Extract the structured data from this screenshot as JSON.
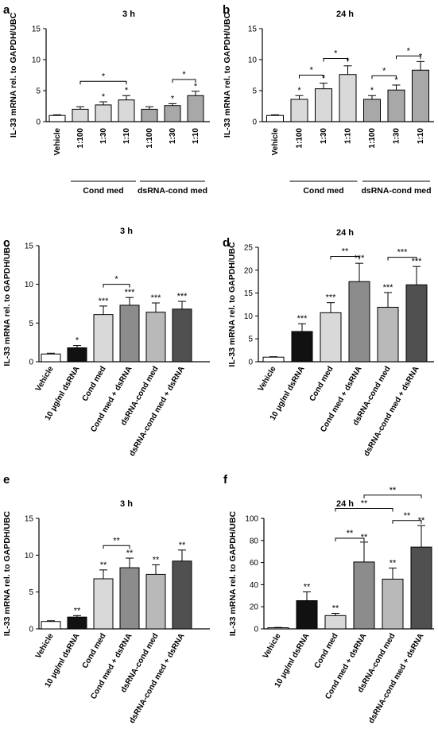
{
  "figure": {
    "y_axis_label": "IL-33 mRNA rel. to GAPDH/UBC",
    "group_labels": {
      "cond": "Cond med",
      "dsrna": "dsRNA-cond med"
    }
  },
  "chart_data": [
    {
      "panel": "a",
      "type": "bar",
      "title": "3 h",
      "ylabel": "IL-33 mRNA rel. to GAPDH/UBC",
      "ylim": [
        0,
        15
      ],
      "yticks": [
        0,
        5,
        10,
        15
      ],
      "categories": [
        "Vehicle",
        "1:100",
        "1:30",
        "1:10",
        "1:100",
        "1:30",
        "1:10"
      ],
      "values": [
        1.0,
        2.0,
        2.7,
        3.5,
        2.0,
        2.6,
        4.2
      ],
      "errors": [
        0.1,
        0.4,
        0.5,
        0.7,
        0.4,
        0.3,
        0.7
      ],
      "fills": [
        "#ffffff",
        "#d9d9d9",
        "#d9d9d9",
        "#d9d9d9",
        "#a8a8a8",
        "#a8a8a8",
        "#a8a8a8"
      ],
      "stars": [
        "",
        "",
        "*",
        "*",
        "",
        "*",
        "*"
      ],
      "brackets": [
        {
          "from": 1,
          "to": 3,
          "y": 6.5,
          "label": "*"
        },
        {
          "from": 5,
          "to": 6,
          "y": 6.8,
          "label": "*"
        }
      ],
      "groups": [
        {
          "from": 1,
          "to": 3,
          "label": "Cond med"
        },
        {
          "from": 4,
          "to": 6,
          "label": "dsRNA-cond med"
        }
      ]
    },
    {
      "panel": "b",
      "type": "bar",
      "title": "24 h",
      "ylabel": "IL-33 mRNA rel. to GAPDH/UBC",
      "ylim": [
        0,
        15
      ],
      "yticks": [
        0,
        5,
        10,
        15
      ],
      "categories": [
        "Vehicle",
        "1:100",
        "1:30",
        "1:10",
        "1:100",
        "1:30",
        "1:10"
      ],
      "values": [
        1.0,
        3.6,
        5.3,
        7.6,
        3.6,
        5.1,
        8.3
      ],
      "errors": [
        0.1,
        0.6,
        0.9,
        1.4,
        0.6,
        0.8,
        1.4
      ],
      "fills": [
        "#ffffff",
        "#d9d9d9",
        "#d9d9d9",
        "#d9d9d9",
        "#a8a8a8",
        "#a8a8a8",
        "#a8a8a8"
      ],
      "stars": [
        "",
        "*",
        "*",
        "*",
        "*",
        "*",
        "*"
      ],
      "brackets": [
        {
          "from": 1,
          "to": 2,
          "y": 7.5,
          "label": "*"
        },
        {
          "from": 2,
          "to": 3,
          "y": 10.2,
          "label": "*"
        },
        {
          "from": 4,
          "to": 5,
          "y": 7.4,
          "label": "*"
        },
        {
          "from": 5,
          "to": 6,
          "y": 10.6,
          "label": "*"
        }
      ],
      "groups": [
        {
          "from": 1,
          "to": 3,
          "label": "Cond med"
        },
        {
          "from": 4,
          "to": 6,
          "label": "dsRNA-cond med"
        }
      ]
    },
    {
      "panel": "c",
      "type": "bar",
      "title": "3 h",
      "ylabel": "IL-33 mRNA rel. to GAPDH/UBC",
      "ylim": [
        0,
        15
      ],
      "yticks": [
        0,
        5,
        10,
        15
      ],
      "categories": [
        "Vehicle",
        "10 μg/ml dsRNA",
        "Cond med",
        "Cond med + dsRNA",
        "dsRNA-cond med",
        "dsRNA-cond med + dsRNA"
      ],
      "values": [
        1.0,
        1.8,
        6.1,
        7.3,
        6.4,
        6.8
      ],
      "errors": [
        0.1,
        0.3,
        1.1,
        1.0,
        1.2,
        1.0
      ],
      "fills": [
        "#ffffff",
        "#111111",
        "#d9d9d9",
        "#8c8c8c",
        "#b9b9b9",
        "#505050"
      ],
      "stars": [
        "",
        "*",
        "***",
        "***",
        "***",
        "***"
      ],
      "brackets": [
        {
          "from": 2,
          "to": 3,
          "y": 10.0,
          "label": "*"
        }
      ]
    },
    {
      "panel": "d",
      "type": "bar",
      "title": "24 h",
      "ylabel": "IL-33 mRNA rel. to GAPDH/UBC",
      "ylim": [
        0,
        25
      ],
      "yticks": [
        0,
        5,
        10,
        15,
        20,
        25
      ],
      "categories": [
        "Vehicle",
        "10 μg/ml dsRNA",
        "Cond med",
        "Cond med + dsRNA",
        "dsRNA-cond med",
        "dsRNA-cond med + dsRNA"
      ],
      "values": [
        1.0,
        6.6,
        10.7,
        17.5,
        11.9,
        16.8
      ],
      "errors": [
        0.1,
        1.7,
        2.2,
        4.0,
        3.2,
        4.0
      ],
      "fills": [
        "#ffffff",
        "#111111",
        "#d9d9d9",
        "#8c8c8c",
        "#b9b9b9",
        "#505050"
      ],
      "stars": [
        "",
        "***",
        "***",
        "***",
        "***",
        "***"
      ],
      "brackets": [
        {
          "from": 2,
          "to": 3,
          "y": 23.0,
          "label": "**"
        },
        {
          "from": 4,
          "to": 5,
          "y": 22.8,
          "label": "***"
        }
      ]
    },
    {
      "panel": "e",
      "type": "bar",
      "title": "3 h",
      "ylabel": "IL-33 mRNA rel. to GAPDH/UBC",
      "ylim": [
        0,
        15
      ],
      "yticks": [
        0,
        5,
        10,
        15
      ],
      "categories": [
        "Vehicle",
        "10 μg/ml dsRNA",
        "Cond med",
        "Cond med + dsRNA",
        "dsRNA-cond med",
        "dsRNA-cond med + dsRNA"
      ],
      "values": [
        1.0,
        1.6,
        6.8,
        8.3,
        7.4,
        9.2
      ],
      "errors": [
        0.1,
        0.2,
        1.2,
        1.3,
        1.3,
        1.5
      ],
      "fills": [
        "#ffffff",
        "#111111",
        "#d9d9d9",
        "#8c8c8c",
        "#b9b9b9",
        "#505050"
      ],
      "stars": [
        "",
        "**",
        "**",
        "**",
        "**",
        "**"
      ],
      "brackets": [
        {
          "from": 2,
          "to": 3,
          "y": 11.3,
          "label": "**"
        }
      ]
    },
    {
      "panel": "f",
      "type": "bar",
      "title": "24 h",
      "ylabel": "IL-33 mRNA rel. to GAPDH/UBC",
      "ylim": [
        0,
        100
      ],
      "yticks": [
        0,
        20,
        40,
        60,
        80,
        100
      ],
      "categories": [
        "Vehicle",
        "10 μg/ml dsRNA",
        "Cond med",
        "Cond med + dsRNA",
        "dsRNA-cond med",
        "dsRNA-cond med + dsRNA"
      ],
      "values": [
        1.0,
        25.5,
        12.0,
        60.5,
        45.0,
        74.0
      ],
      "errors": [
        0.3,
        8.0,
        2.0,
        18.0,
        10.0,
        19.5
      ],
      "fills": [
        "#ffffff",
        "#111111",
        "#d9d9d9",
        "#8c8c8c",
        "#b9b9b9",
        "#505050"
      ],
      "stars": [
        "",
        "**",
        "**",
        "**",
        "**",
        "**"
      ],
      "brackets": [
        {
          "from": 2,
          "to": 3,
          "y": 82,
          "label": "**"
        },
        {
          "from": 4,
          "to": 5,
          "y": 98,
          "label": "**"
        },
        {
          "from": 2,
          "to": 4,
          "y": 109,
          "label": "**"
        },
        {
          "from": 3,
          "to": 5,
          "y": 121,
          "label": "**"
        }
      ]
    }
  ]
}
